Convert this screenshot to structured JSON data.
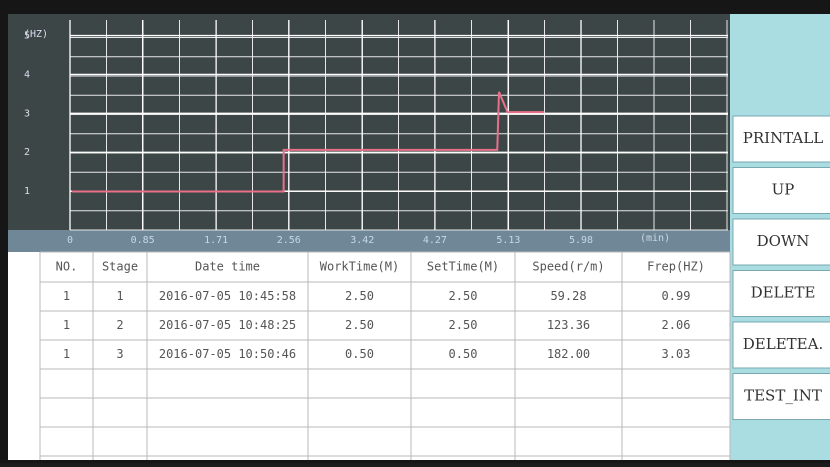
{
  "chart_data": {
    "type": "line",
    "y_label": "(HZ)",
    "x_label": "(min)",
    "x": [
      0.02,
      2.5,
      2.5,
      5.0,
      5.02,
      5.12,
      5.55
    ],
    "series": [
      {
        "color": "#e8708a",
        "values": [
          0.99,
          0.99,
          2.06,
          2.06,
          3.55,
          3.03,
          3.03
        ]
      }
    ],
    "xlim": [
      0,
      7.7
    ],
    "ylim": [
      0,
      5.4
    ],
    "xticks": [
      0,
      0.85,
      1.71,
      2.56,
      3.42,
      4.27,
      5.13,
      5.98
    ],
    "yticks": [
      1,
      2,
      3,
      4,
      5
    ],
    "grid": true
  },
  "table": {
    "header": [
      "NO.",
      "Stage",
      "Date time",
      "WorkTime(M)",
      "SetTime(M)",
      "Speed(r/m)",
      "Frep(HZ)"
    ],
    "rows": [
      [
        "1",
        "1",
        "2016-07-05 10:45:58",
        "2.50",
        "2.50",
        "59.28",
        "0.99"
      ],
      [
        "1",
        "2",
        "2016-07-05 10:48:25",
        "2.50",
        "2.50",
        "123.36",
        "2.06"
      ],
      [
        "1",
        "3",
        "2016-07-05 10:50:46",
        "0.50",
        "0.50",
        "182.00",
        "3.03"
      ]
    ]
  },
  "buttons": [
    "PRINTALL",
    "UP",
    "DOWN",
    "DELETE",
    "DELETEA.",
    "TEST_INT"
  ]
}
